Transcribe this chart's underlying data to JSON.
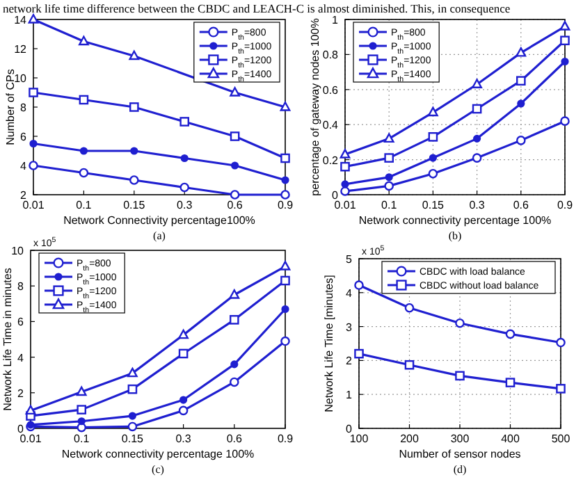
{
  "chart_data": [
    {
      "type": "line",
      "xlabel": "Network Connectivity percentage100%",
      "ylabel": "Number of CPs",
      "categories": [
        "0.01",
        "0.1",
        "0.15",
        "0.3",
        "0.6",
        "0.9"
      ],
      "ylim": [
        2,
        14
      ],
      "yticks": [
        2,
        4,
        6,
        8,
        10,
        12,
        14
      ],
      "grid": false,
      "legend": "top right",
      "line_style": "solid",
      "annotations": [
        "network life time difference between the CBDC and LEACH-C is almost diminished. This, in consequence",
        "(a)"
      ],
      "series": [
        {
          "name": "P$_{th}$=800",
          "color": "#1f1fd0",
          "marker": "circle",
          "values": [
            4,
            3.5,
            3,
            2.5,
            2,
            2
          ]
        },
        {
          "name": "P$_{th}$=1000",
          "color": "#1f1fd0",
          "marker": "circle",
          "values": [
            5.5,
            5,
            5,
            4.5,
            4,
            3
          ]
        },
        {
          "name": "P$_{th}$=1200",
          "color": "#1f1fd0",
          "marker": "square",
          "values": [
            9,
            8.5,
            8,
            7,
            6,
            4.5
          ]
        },
        {
          "name": "P$_{th}$=1400",
          "color": "#1f1fd0",
          "marker": "triangle",
          "values": [
            14,
            12.5,
            11.5,
            null,
            9,
            8
          ]
        }
      ]
    },
    {
      "type": "line",
      "xlabel": "Network connectivity percentage 100%",
      "ylabel": "percentage of gateway nodes 100%",
      "categories": [
        "0.01",
        "0.1",
        "0.15",
        "0.3",
        "0.6",
        "0.9"
      ],
      "ylim": [
        0,
        1
      ],
      "yticks": [
        0,
        0.2,
        0.4,
        0.6,
        0.8,
        1
      ],
      "grid": true,
      "legend": "top left",
      "line_style": "solid",
      "annotations": [
        "(b)"
      ],
      "series": [
        {
          "name": "P$_{th}$=800",
          "color": "#1f1fd0",
          "marker": "circle",
          "values": [
            0.02,
            0.05,
            0.12,
            0.21,
            0.31,
            0.42
          ]
        },
        {
          "name": "P$_{th}$=1000",
          "color": "#1f1fd0",
          "marker": "circle",
          "values": [
            0.06,
            0.1,
            0.21,
            0.32,
            0.52,
            0.76
          ]
        },
        {
          "name": "P$_{th}$=1200",
          "color": "#1f1fd0",
          "marker": "square",
          "values": [
            0.16,
            0.21,
            0.33,
            0.49,
            0.65,
            0.88
          ]
        },
        {
          "name": "P$_{th}$=1400",
          "color": "#1f1fd0",
          "marker": "triangle",
          "values": [
            0.23,
            0.32,
            0.47,
            0.63,
            0.81,
            0.96
          ]
        }
      ]
    },
    {
      "type": "line",
      "xlabel": "Network connectivity percentage 100%",
      "ylabel": "Network Life Time in minutes",
      "categories": [
        "0.01",
        "0.1",
        "0.15",
        "0.3",
        "0.6",
        "0.9"
      ],
      "ylim": [
        0,
        10
      ],
      "yticks": [
        0,
        2,
        4,
        6,
        8,
        10
      ],
      "grid": false,
      "legend": "top left",
      "line_style": "solid",
      "annotations": [
        "x 10$^{5}$",
        "(c)"
      ],
      "series": [
        {
          "name": "P$_{th}$=800",
          "color": "#1f1fd0",
          "marker": "circle",
          "values": [
            0.1,
            0.05,
            0.1,
            1,
            2.6,
            4.9
          ]
        },
        {
          "name": "P$_{th}$=1000",
          "color": "#1f1fd0",
          "marker": "circle",
          "values": [
            0.2,
            0.4,
            0.7,
            1.6,
            3.6,
            6.7
          ]
        },
        {
          "name": "P$_{th}$=1200",
          "color": "#1f1fd0",
          "marker": "square",
          "values": [
            0.7,
            1.05,
            2.2,
            4.2,
            6.1,
            8.3
          ]
        },
        {
          "name": "P$_{th}$=1400",
          "color": "#1f1fd0",
          "marker": "triangle",
          "values": [
            1,
            2.05,
            3.1,
            5.25,
            7.5,
            9.1
          ]
        }
      ]
    },
    {
      "type": "line",
      "xlabel": "Number of sensor nodes",
      "ylabel": "Network Life Time [minutes]",
      "x": [
        100,
        200,
        300,
        400,
        500
      ],
      "xlim": [
        100,
        500
      ],
      "xticks": [
        100,
        200,
        300,
        400,
        500
      ],
      "ylim": [
        0,
        5
      ],
      "yticks": [
        0,
        1,
        2,
        3,
        4,
        5
      ],
      "grid": true,
      "legend": "top right",
      "line_style": "solid",
      "annotations": [
        "x 10$^{5}$",
        "(d)"
      ],
      "series": [
        {
          "name": "CBDC with load balance",
          "color": "#1f1fd0",
          "marker": "circle",
          "values": [
            4.22,
            3.55,
            3.1,
            2.78,
            2.53
          ]
        },
        {
          "name": "CBDC without load balance",
          "color": "#1f1fd0",
          "marker": "square",
          "values": [
            2.2,
            1.87,
            1.55,
            1.35,
            1.17
          ]
        }
      ]
    }
  ]
}
